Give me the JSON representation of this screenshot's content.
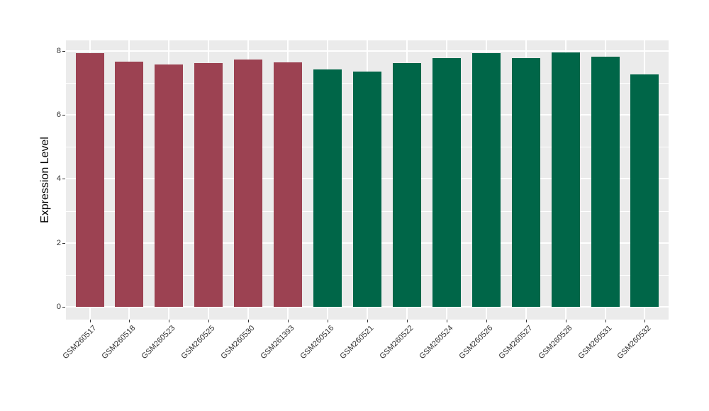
{
  "chart_data": {
    "type": "bar",
    "title": "",
    "xlabel": "",
    "ylabel": "Expression Level",
    "categories": [
      "GSM260517",
      "GSM260518",
      "GSM260523",
      "GSM260525",
      "GSM260530",
      "GSM261393",
      "GSM260516",
      "GSM260521",
      "GSM260522",
      "GSM260524",
      "GSM260526",
      "GSM260527",
      "GSM260528",
      "GSM260531",
      "GSM260532"
    ],
    "values": [
      7.93,
      7.67,
      7.58,
      7.63,
      7.74,
      7.65,
      7.42,
      7.36,
      7.63,
      7.78,
      7.94,
      7.77,
      7.96,
      7.83,
      7.27
    ],
    "bar_colors": [
      "#9C4252",
      "#9C4252",
      "#9C4252",
      "#9C4252",
      "#9C4252",
      "#9C4252",
      "#006648",
      "#006648",
      "#006648",
      "#006648",
      "#006648",
      "#006648",
      "#006648",
      "#006648",
      "#006648"
    ],
    "color_groups": [
      {
        "color": "#9C4252",
        "samples": [
          "GSM260517",
          "GSM260518",
          "GSM260523",
          "GSM260525",
          "GSM260530",
          "GSM261393"
        ]
      },
      {
        "color": "#006648",
        "samples": [
          "GSM260516",
          "GSM260521",
          "GSM260522",
          "GSM260524",
          "GSM260526",
          "GSM260527",
          "GSM260528",
          "GSM260531",
          "GSM260532"
        ]
      }
    ],
    "yticks": [
      0,
      2,
      4,
      6,
      8
    ],
    "minor_yticks": [
      1,
      3,
      5,
      7
    ],
    "ylim": [
      -0.4,
      8.35
    ],
    "grid": true,
    "legend": "none",
    "x_tick_rotation_deg": 45,
    "panel_background": "#EBEBEB",
    "gridline_color": "#FFFFFF",
    "tick_color": "#333333",
    "axis_title_color": "#000000",
    "figure_background": "#FFFFFF"
  }
}
